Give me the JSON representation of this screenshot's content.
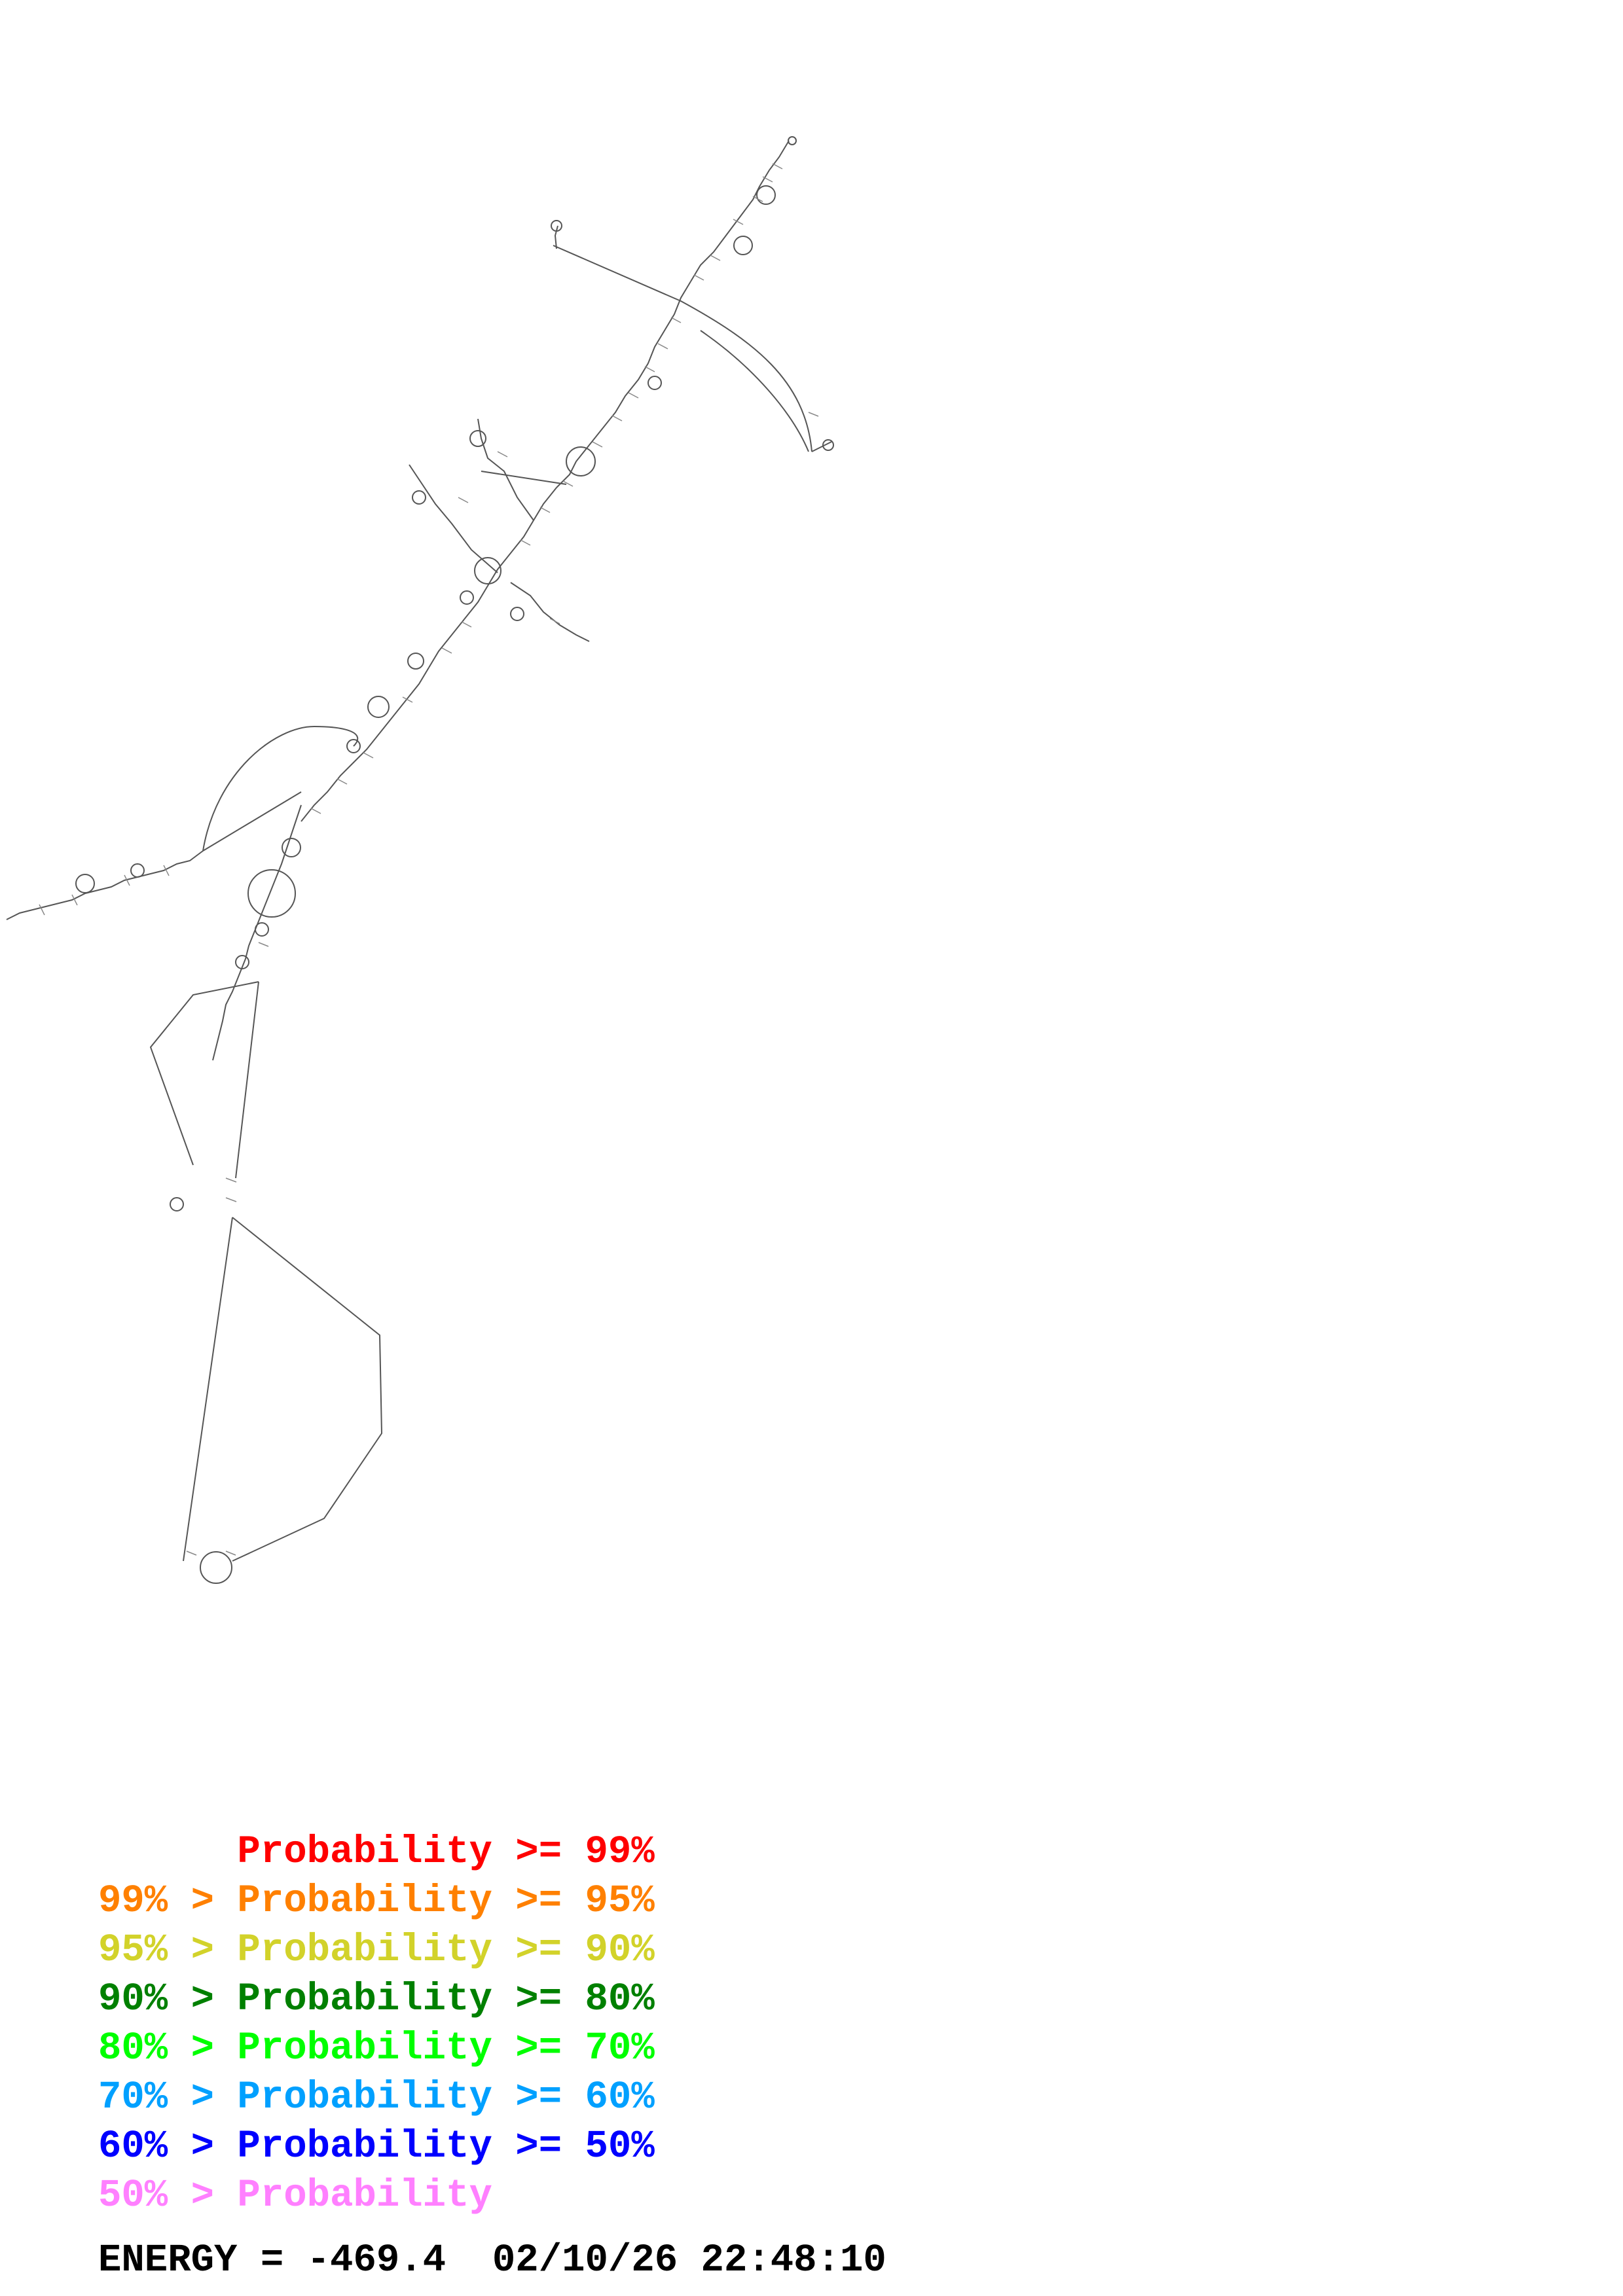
{
  "legend": [
    {
      "text": "      Probability >= 99%",
      "color": "#ff0000"
    },
    {
      "text": "99% > Probability >= 95%",
      "color": "#ff8000"
    },
    {
      "text": "95% > Probability >= 90%",
      "color": "#d2d22a"
    },
    {
      "text": "90% > Probability >= 80%",
      "color": "#008000"
    },
    {
      "text": "80% > Probability >= 70%",
      "color": "#00ff00"
    },
    {
      "text": "70% > Probability >= 60%",
      "color": "#00a0ff"
    },
    {
      "text": "60% > Probability >= 50%",
      "color": "#0000ff"
    },
    {
      "text": "50% > Probability",
      "color": "#ff80ff"
    }
  ],
  "footer": {
    "energy": "ENERGY = -469.4  02/10/26 22:48:10"
  },
  "colors": {
    "backbone": "#555555",
    "pairs": "#888888"
  }
}
